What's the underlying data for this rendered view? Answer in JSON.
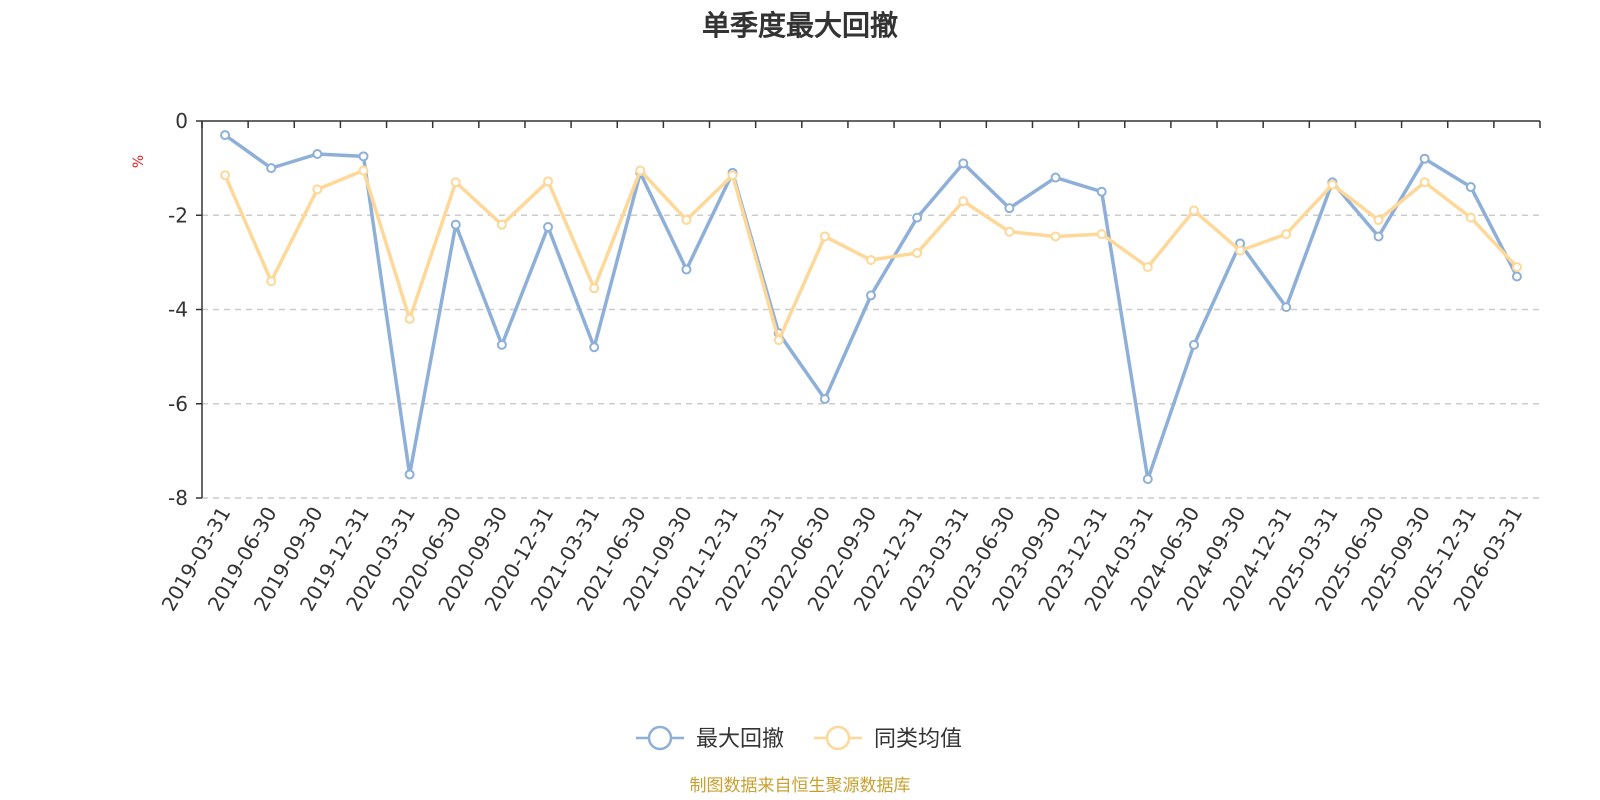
{
  "colors": {
    "series_1": "#8eb0d8",
    "series_2": "#fdd898",
    "ylabel": "#e02020",
    "source": "#c9a030",
    "axis": "#333333",
    "grid": "#cccccc"
  },
  "source_text": "制图数据来自恒生聚源数据库",
  "chart_data": {
    "type": "line",
    "title": "单季度最大回撤",
    "xlabel": "",
    "ylabel": "%",
    "ylim": [
      -8,
      0
    ],
    "yticks": [
      0,
      -2,
      -4,
      -6,
      -8
    ],
    "grid": true,
    "legend_position": "bottom",
    "categories": [
      "2019-03-31",
      "2019-06-30",
      "2019-09-30",
      "2019-12-31",
      "2020-03-31",
      "2020-06-30",
      "2020-09-30",
      "2020-12-31",
      "2021-03-31",
      "2021-06-30",
      "2021-09-30",
      "2021-12-31",
      "2022-03-31",
      "2022-06-30",
      "2022-09-30",
      "2022-12-31",
      "2023-03-31",
      "2023-06-30",
      "2023-09-30",
      "2023-12-31",
      "2024-03-31",
      "2024-06-30",
      "2024-09-30",
      "2024-12-31",
      "2025-03-31",
      "2025-06-30",
      "2025-09-30",
      "2025-12-31",
      "2026-03-31"
    ],
    "series": [
      {
        "name": "最大回撤",
        "values": [
          -0.3,
          -1.0,
          -0.7,
          -0.75,
          -7.5,
          -2.2,
          -4.75,
          -2.25,
          -4.8,
          -1.1,
          -3.15,
          -1.1,
          -4.5,
          -5.9,
          -3.7,
          -2.05,
          -0.9,
          -1.85,
          -1.2,
          -1.5,
          -7.6,
          -4.75,
          -2.6,
          -3.95,
          -1.3,
          -2.45,
          -0.8,
          -1.4,
          -3.3
        ]
      },
      {
        "name": "同类均值",
        "values": [
          -1.15,
          -3.4,
          -1.45,
          -1.05,
          -4.2,
          -1.3,
          -2.2,
          -1.28,
          -3.55,
          -1.05,
          -2.1,
          -1.15,
          -4.65,
          -2.45,
          -2.95,
          -2.8,
          -1.7,
          -2.35,
          -2.45,
          -2.4,
          -3.1,
          -1.9,
          -2.75,
          -2.4,
          -1.35,
          -2.1,
          -1.3,
          -2.05,
          -3.1
        ]
      }
    ]
  }
}
